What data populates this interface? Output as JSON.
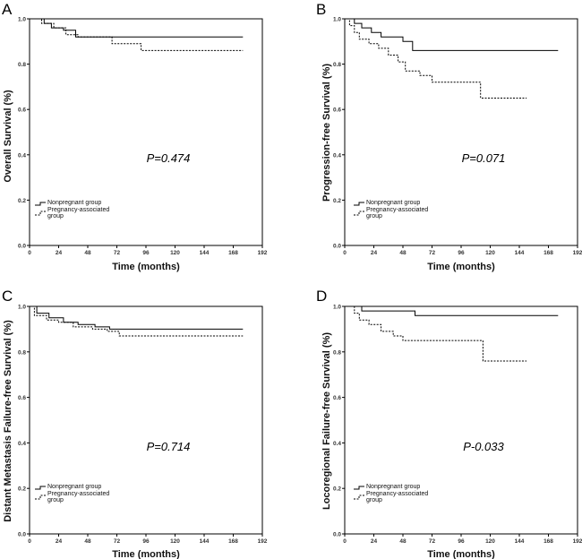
{
  "chart_data": [
    {
      "type": "line",
      "panel_label": "A",
      "ylabel": "Overall Survival (%)",
      "xlabel": "Time (months)",
      "xlim": [
        0,
        192
      ],
      "ylim": [
        0,
        1.0
      ],
      "xticks": [
        "0",
        "24",
        "48",
        "72",
        "96",
        "120",
        "144",
        "168",
        "192"
      ],
      "yticks": [
        "0.0",
        "0.2",
        "0.4",
        "0.6",
        "0.8",
        "1.0"
      ],
      "p_value": "P=0.474",
      "legend": [
        "Nonpregnant group",
        "Pregnancy-associated",
        "group"
      ],
      "series": [
        {
          "name": "Nonpregnant group",
          "style": "solid",
          "points": [
            [
              0,
              1.0
            ],
            [
              12,
              1.0
            ],
            [
              12,
              0.98
            ],
            [
              18,
              0.98
            ],
            [
              18,
              0.96
            ],
            [
              28,
              0.96
            ],
            [
              28,
              0.95
            ],
            [
              38,
              0.95
            ],
            [
              38,
              0.92
            ],
            [
              176,
              0.92
            ]
          ]
        },
        {
          "name": "Pregnancy-associated group",
          "style": "dashed",
          "points": [
            [
              0,
              1.0
            ],
            [
              10,
              1.0
            ],
            [
              10,
              0.98
            ],
            [
              20,
              0.98
            ],
            [
              20,
              0.96
            ],
            [
              30,
              0.96
            ],
            [
              30,
              0.93
            ],
            [
              40,
              0.93
            ],
            [
              40,
              0.92
            ],
            [
              68,
              0.92
            ],
            [
              68,
              0.89
            ],
            [
              92,
              0.89
            ],
            [
              92,
              0.86
            ],
            [
              176,
              0.86
            ]
          ]
        }
      ]
    },
    {
      "type": "line",
      "panel_label": "B",
      "ylabel": "Progression-free Survival (%)",
      "xlabel": "Time (months)",
      "xlim": [
        0,
        192
      ],
      "ylim": [
        0,
        1.0
      ],
      "xticks": [
        "0",
        "24",
        "48",
        "72",
        "96",
        "120",
        "144",
        "168",
        "192"
      ],
      "yticks": [
        "0.0",
        "0.2",
        "0.4",
        "0.6",
        "0.8",
        "1.0"
      ],
      "p_value": "P=0.071",
      "legend": [
        "Nonpregnant group",
        "Pregnancy-associated",
        "group"
      ],
      "series": [
        {
          "name": "Nonpregnant group",
          "style": "solid",
          "points": [
            [
              0,
              1.0
            ],
            [
              8,
              1.0
            ],
            [
              8,
              0.98
            ],
            [
              14,
              0.98
            ],
            [
              14,
              0.96
            ],
            [
              22,
              0.96
            ],
            [
              22,
              0.94
            ],
            [
              30,
              0.94
            ],
            [
              30,
              0.92
            ],
            [
              48,
              0.92
            ],
            [
              48,
              0.9
            ],
            [
              56,
              0.9
            ],
            [
              56,
              0.86
            ],
            [
              176,
              0.86
            ]
          ]
        },
        {
          "name": "Pregnancy-associated group",
          "style": "dashed",
          "points": [
            [
              0,
              1.0
            ],
            [
              4,
              1.0
            ],
            [
              4,
              0.97
            ],
            [
              8,
              0.97
            ],
            [
              8,
              0.94
            ],
            [
              12,
              0.94
            ],
            [
              12,
              0.91
            ],
            [
              20,
              0.91
            ],
            [
              20,
              0.89
            ],
            [
              28,
              0.89
            ],
            [
              28,
              0.87
            ],
            [
              36,
              0.87
            ],
            [
              36,
              0.84
            ],
            [
              44,
              0.84
            ],
            [
              44,
              0.81
            ],
            [
              50,
              0.81
            ],
            [
              50,
              0.77
            ],
            [
              62,
              0.77
            ],
            [
              62,
              0.75
            ],
            [
              72,
              0.75
            ],
            [
              72,
              0.72
            ],
            [
              112,
              0.72
            ],
            [
              112,
              0.65
            ],
            [
              150,
              0.65
            ]
          ]
        }
      ]
    },
    {
      "type": "line",
      "panel_label": "C",
      "ylabel": "Distant Metastasis Failure-free Survival (%)",
      "xlabel": "Time (months)",
      "xlim": [
        0,
        192
      ],
      "ylim": [
        0,
        1.0
      ],
      "xticks": [
        "0",
        "24",
        "48",
        "72",
        "96",
        "120",
        "144",
        "168",
        "192"
      ],
      "yticks": [
        "0.0",
        "0.2",
        "0.4",
        "0.6",
        "0.8",
        "1.0"
      ],
      "p_value": "P=0.714",
      "legend": [
        "Nonpregnant group",
        "Pregnancy-associated",
        "group"
      ],
      "series": [
        {
          "name": "Nonpregnant group",
          "style": "solid",
          "points": [
            [
              0,
              1.0
            ],
            [
              6,
              1.0
            ],
            [
              6,
              0.97
            ],
            [
              16,
              0.97
            ],
            [
              16,
              0.95
            ],
            [
              28,
              0.95
            ],
            [
              28,
              0.93
            ],
            [
              40,
              0.93
            ],
            [
              40,
              0.92
            ],
            [
              54,
              0.92
            ],
            [
              54,
              0.91
            ],
            [
              66,
              0.91
            ],
            [
              66,
              0.9
            ],
            [
              176,
              0.9
            ]
          ]
        },
        {
          "name": "Pregnancy-associated group",
          "style": "dashed",
          "points": [
            [
              0,
              1.0
            ],
            [
              4,
              1.0
            ],
            [
              4,
              0.96
            ],
            [
              14,
              0.96
            ],
            [
              14,
              0.94
            ],
            [
              24,
              0.94
            ],
            [
              24,
              0.93
            ],
            [
              36,
              0.93
            ],
            [
              36,
              0.91
            ],
            [
              52,
              0.91
            ],
            [
              52,
              0.9
            ],
            [
              64,
              0.9
            ],
            [
              64,
              0.89
            ],
            [
              74,
              0.89
            ],
            [
              74,
              0.87
            ],
            [
              176,
              0.87
            ]
          ]
        }
      ]
    },
    {
      "type": "line",
      "panel_label": "D",
      "ylabel": "Locoregional Failure-free Survival (%)",
      "xlabel": "Time (months)",
      "xlim": [
        0,
        192
      ],
      "ylim": [
        0,
        1.0
      ],
      "xticks": [
        "0",
        "24",
        "48",
        "72",
        "96",
        "120",
        "144",
        "168",
        "192"
      ],
      "yticks": [
        "0.0",
        "0.2",
        "0.4",
        "0.6",
        "0.8",
        "1.0"
      ],
      "p_value": "P-0.033",
      "legend": [
        "Nonpregnant group",
        "Pregnancy-associated",
        "group"
      ],
      "series": [
        {
          "name": "Nonpregnant group",
          "style": "solid",
          "points": [
            [
              0,
              1.0
            ],
            [
              14,
              1.0
            ],
            [
              14,
              0.98
            ],
            [
              58,
              0.98
            ],
            [
              58,
              0.96
            ],
            [
              176,
              0.96
            ]
          ]
        },
        {
          "name": "Pregnancy-associated group",
          "style": "dashed",
          "points": [
            [
              0,
              1.0
            ],
            [
              8,
              1.0
            ],
            [
              8,
              0.97
            ],
            [
              12,
              0.97
            ],
            [
              12,
              0.94
            ],
            [
              20,
              0.94
            ],
            [
              20,
              0.92
            ],
            [
              30,
              0.92
            ],
            [
              30,
              0.89
            ],
            [
              40,
              0.89
            ],
            [
              40,
              0.87
            ],
            [
              48,
              0.87
            ],
            [
              48,
              0.85
            ],
            [
              114,
              0.85
            ],
            [
              114,
              0.76
            ],
            [
              150,
              0.76
            ]
          ]
        }
      ]
    }
  ]
}
